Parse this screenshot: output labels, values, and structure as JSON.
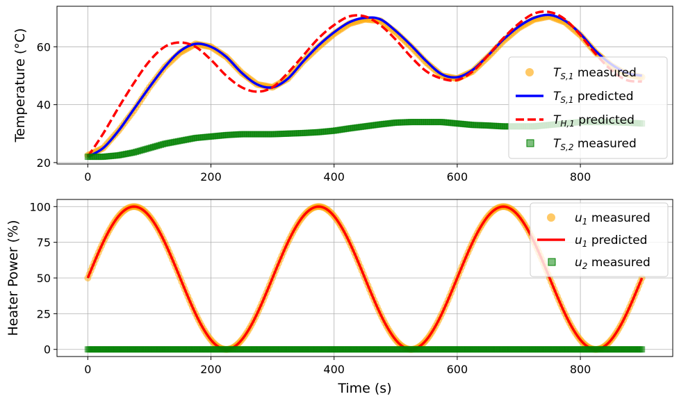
{
  "figure": {
    "xlabel": "Time (s)"
  },
  "colors": {
    "ts1_measured": "#ffa500",
    "ts1_predicted": "#0000ff",
    "th1_predicted": "#ff0000",
    "ts2_measured": "#008000",
    "u1_measured": "#ffa500",
    "u1_predicted": "#ff0000",
    "u2_measured": "#008000"
  },
  "chart_data": [
    {
      "type": "line",
      "ylabel": "Temperature (°C)",
      "xlim": [
        -50,
        950
      ],
      "ylim": [
        19.5,
        74
      ],
      "xticks": [
        0,
        200,
        400,
        600,
        800
      ],
      "yticks": [
        20,
        40,
        60
      ],
      "grid": true,
      "legend_position": "right",
      "series": [
        {
          "name": "T_S,1 measured",
          "label_main": "T",
          "label_sub": "S,1",
          "label_rest": " measured",
          "style": "scatter",
          "color": "#ffa500",
          "x": [
            0,
            25,
            50,
            75,
            100,
            125,
            150,
            175,
            200,
            225,
            250,
            275,
            300,
            325,
            350,
            375,
            400,
            425,
            450,
            475,
            500,
            525,
            550,
            575,
            600,
            625,
            650,
            675,
            700,
            725,
            750,
            775,
            800,
            825,
            850,
            875,
            900
          ],
          "y": [
            22.5,
            25,
            31,
            38,
            46,
            53,
            58,
            61,
            60,
            56.5,
            51,
            47,
            46,
            49,
            55,
            60,
            64.5,
            68,
            69.5,
            69,
            65,
            60,
            54.5,
            50,
            49,
            51.5,
            56.5,
            62,
            66.5,
            69.5,
            70.5,
            68.5,
            64,
            58,
            53.5,
            50.5,
            49.5
          ]
        },
        {
          "name": "T_S,1 predicted",
          "label_main": "T",
          "label_sub": "S,1",
          "label_rest": " predicted",
          "style": "line",
          "color": "#0000ff",
          "x": [
            0,
            25,
            50,
            75,
            100,
            125,
            150,
            175,
            200,
            225,
            250,
            275,
            300,
            325,
            350,
            375,
            400,
            425,
            450,
            475,
            500,
            525,
            550,
            575,
            600,
            625,
            650,
            675,
            700,
            725,
            750,
            775,
            800,
            825,
            850,
            875,
            900
          ],
          "y": [
            22,
            25,
            31,
            38.5,
            46,
            53,
            58.5,
            61,
            60,
            56.5,
            51,
            47,
            46,
            49,
            55,
            60.5,
            65,
            68.5,
            70,
            69.5,
            65.5,
            60.5,
            55,
            50.5,
            49.5,
            52,
            57,
            62.5,
            67,
            70,
            71,
            69,
            64.5,
            58.5,
            54,
            51,
            50
          ]
        },
        {
          "name": "T_H,1 predicted",
          "label_main": "T",
          "label_sub": "H,1",
          "label_rest": " predicted",
          "style": "dashed",
          "color": "#ff0000",
          "x": [
            0,
            25,
            50,
            75,
            100,
            125,
            150,
            175,
            200,
            225,
            250,
            275,
            300,
            325,
            350,
            375,
            400,
            425,
            450,
            475,
            500,
            525,
            550,
            575,
            600,
            625,
            650,
            675,
            700,
            725,
            750,
            775,
            800,
            825,
            850,
            875,
            900
          ],
          "y": [
            22,
            30,
            39,
            47.5,
            55,
            60,
            61.5,
            60,
            55.5,
            50,
            46,
            44.5,
            46,
            51,
            57,
            63,
            67.5,
            70.5,
            70.5,
            67.5,
            62.5,
            56.5,
            51.5,
            49,
            48.5,
            51.5,
            57,
            63,
            68,
            71.5,
            72,
            69.5,
            64,
            57.5,
            52,
            48.5,
            48
          ]
        },
        {
          "name": "T_S,2 measured",
          "label_main": "T",
          "label_sub": "S,2",
          "label_rest": " measured",
          "style": "scatter",
          "color": "#008000",
          "x": [
            0,
            25,
            50,
            75,
            100,
            125,
            150,
            175,
            200,
            225,
            250,
            275,
            300,
            325,
            350,
            375,
            400,
            425,
            450,
            475,
            500,
            525,
            550,
            575,
            600,
            625,
            650,
            675,
            700,
            725,
            750,
            775,
            800,
            825,
            850,
            875,
            900
          ],
          "y": [
            22,
            22,
            22.5,
            23.5,
            25,
            26.5,
            27.5,
            28.5,
            29,
            29.5,
            29.8,
            29.8,
            29.8,
            30,
            30.2,
            30.5,
            31,
            31.8,
            32.5,
            33.2,
            33.8,
            34,
            34,
            34,
            33.5,
            33,
            32.8,
            32.5,
            32.5,
            32.5,
            33,
            33.5,
            34,
            34,
            34,
            33.8,
            33.5
          ]
        }
      ]
    },
    {
      "type": "line",
      "ylabel": "Heater Power (%)",
      "xlabel": "Time (s)",
      "xlim": [
        -50,
        950
      ],
      "ylim": [
        -5,
        105
      ],
      "xticks": [
        0,
        200,
        400,
        600,
        800
      ],
      "yticks": [
        0,
        25,
        50,
        75,
        100
      ],
      "grid": true,
      "legend_position": "top-right",
      "series": [
        {
          "name": "u_1 measured",
          "label_main": "u",
          "label_sub": "1",
          "label_rest": " measured",
          "style": "scatter",
          "color": "#ffa500",
          "period": 300,
          "amplitude": 50,
          "offset": 50,
          "x_range": [
            0,
            900
          ]
        },
        {
          "name": "u_1 predicted",
          "label_main": "u",
          "label_sub": "1",
          "label_rest": " predicted",
          "style": "line",
          "color": "#ff0000",
          "period": 300,
          "amplitude": 50,
          "offset": 50,
          "x_range": [
            0,
            900
          ]
        },
        {
          "name": "u_2 measured",
          "label_main": "u",
          "label_sub": "2",
          "label_rest": " measured",
          "style": "scatter",
          "color": "#008000",
          "constant": 0,
          "x_range": [
            0,
            900
          ]
        }
      ]
    }
  ]
}
